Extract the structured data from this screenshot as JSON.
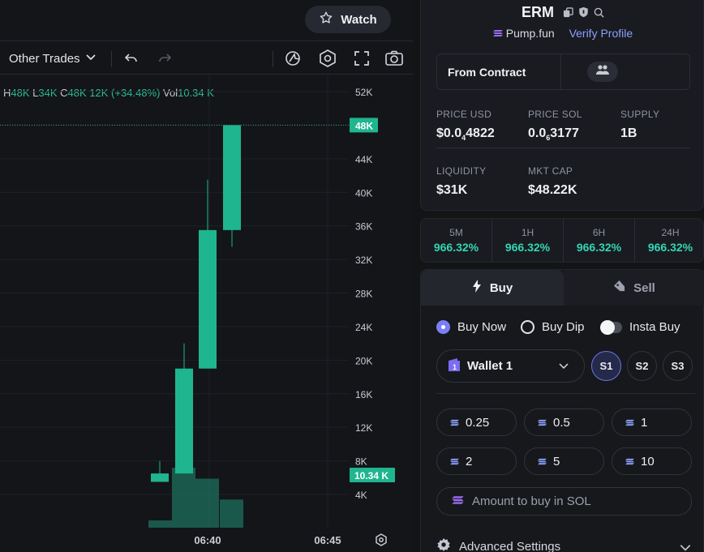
{
  "header": {
    "watch_label": "Watch"
  },
  "toolbar": {
    "trades_dropdown": "Other Trades"
  },
  "ohlc": {
    "h_key": "H",
    "h_val": "48K",
    "l_key": "L",
    "l_val": "34K",
    "c_key": "C",
    "c_val": "48K",
    "change": "12K (+34.48%)",
    "vol_key": "Vol",
    "vol_val": "10.34 K"
  },
  "chart_data": {
    "type": "candlestick",
    "y_ticks": [
      "52K",
      "48K",
      "44K",
      "40K",
      "36K",
      "32K",
      "28K",
      "24K",
      "20K",
      "16K",
      "12K",
      "8K",
      "4K"
    ],
    "x_ticks": [
      "06:40",
      "06:45"
    ],
    "price_label": "48K",
    "volume_label": "10.34 K",
    "candles": [
      {
        "open": 5500,
        "close": 6500,
        "high": 8000,
        "low": 5500
      },
      {
        "open": 6500,
        "close": 19000,
        "high": 22000,
        "low": 6500
      },
      {
        "open": 19000,
        "close": 35500,
        "high": 41500,
        "low": 19000
      },
      {
        "open": 35500,
        "close": 48000,
        "high": 48000,
        "low": 33500
      }
    ],
    "volumes": [
      1.6,
      13.2,
      10.8,
      6.2
    ],
    "ylim": [
      0,
      54000
    ]
  },
  "token": {
    "name": "ERM",
    "platform": "Pump.fun",
    "verify": "Verify Profile",
    "contract_label": "From Contract",
    "stats": [
      {
        "label": "PRICE USD",
        "value_pre": "$0.0",
        "value_sub": "4",
        "value_post": "4822"
      },
      {
        "label": "PRICE SOL",
        "value_pre": "0.0",
        "value_sub": "6",
        "value_post": "3177"
      },
      {
        "label": "SUPPLY",
        "value_pre": "1B",
        "value_sub": "",
        "value_post": ""
      },
      {
        "label": "LIQUIDITY",
        "value_pre": "$31K",
        "value_sub": "",
        "value_post": ""
      },
      {
        "label": "MKT CAP",
        "value_pre": "$48.22K",
        "value_sub": "",
        "value_post": ""
      }
    ]
  },
  "changes": [
    {
      "period": "5M",
      "value": "966.32%"
    },
    {
      "period": "1H",
      "value": "966.32%"
    },
    {
      "period": "6H",
      "value": "966.32%"
    },
    {
      "period": "24H",
      "value": "966.32%"
    }
  ],
  "trade": {
    "buy_tab": "Buy",
    "sell_tab": "Sell",
    "opt_buy_now": "Buy Now",
    "opt_buy_dip": "Buy Dip",
    "opt_insta": "Insta Buy",
    "wallet": "Wallet 1",
    "wallet_badge": "1",
    "slots": [
      "S1",
      "S2",
      "S3"
    ],
    "amounts": [
      "0.25",
      "0.5",
      "1",
      "2",
      "5",
      "10"
    ],
    "amount_placeholder": "Amount to buy in SOL",
    "advanced": "Advanced Settings"
  },
  "colors": {
    "up": "#1fb58f",
    "accent": "#7b7ff7",
    "change": "#33d6b5"
  }
}
